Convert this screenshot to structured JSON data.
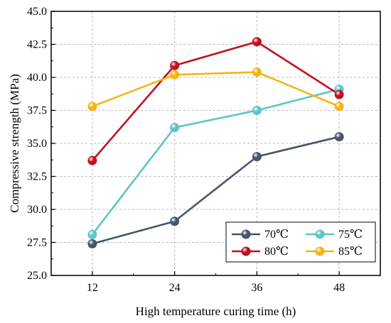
{
  "chart_data": {
    "type": "line",
    "xlabel": "High temperature curing time (h)",
    "ylabel": "Compressive strength (MPa)",
    "categories": [
      "12",
      "24",
      "36",
      "48"
    ],
    "x": [
      12,
      24,
      36,
      48
    ],
    "xlim": [
      6,
      54
    ],
    "ylim": [
      25.0,
      45.0
    ],
    "y_ticks": [
      "25.0",
      "27.5",
      "30.0",
      "32.5",
      "35.0",
      "37.5",
      "40.0",
      "42.5",
      "45.0"
    ],
    "grid": true,
    "legend_position": "bottom-right",
    "series": [
      {
        "name": "70℃",
        "color": "#4a5468",
        "values": [
          27.4,
          29.1,
          34.0,
          35.5
        ]
      },
      {
        "name": "75℃",
        "color": "#5cc5c6",
        "values": [
          28.1,
          36.2,
          37.5,
          39.1
        ]
      },
      {
        "name": "80℃",
        "color": "#c0111f",
        "values": [
          33.7,
          40.9,
          42.7,
          38.7
        ]
      },
      {
        "name": "85℃",
        "color": "#f5b415",
        "values": [
          37.8,
          40.2,
          40.4,
          37.8
        ]
      }
    ]
  }
}
